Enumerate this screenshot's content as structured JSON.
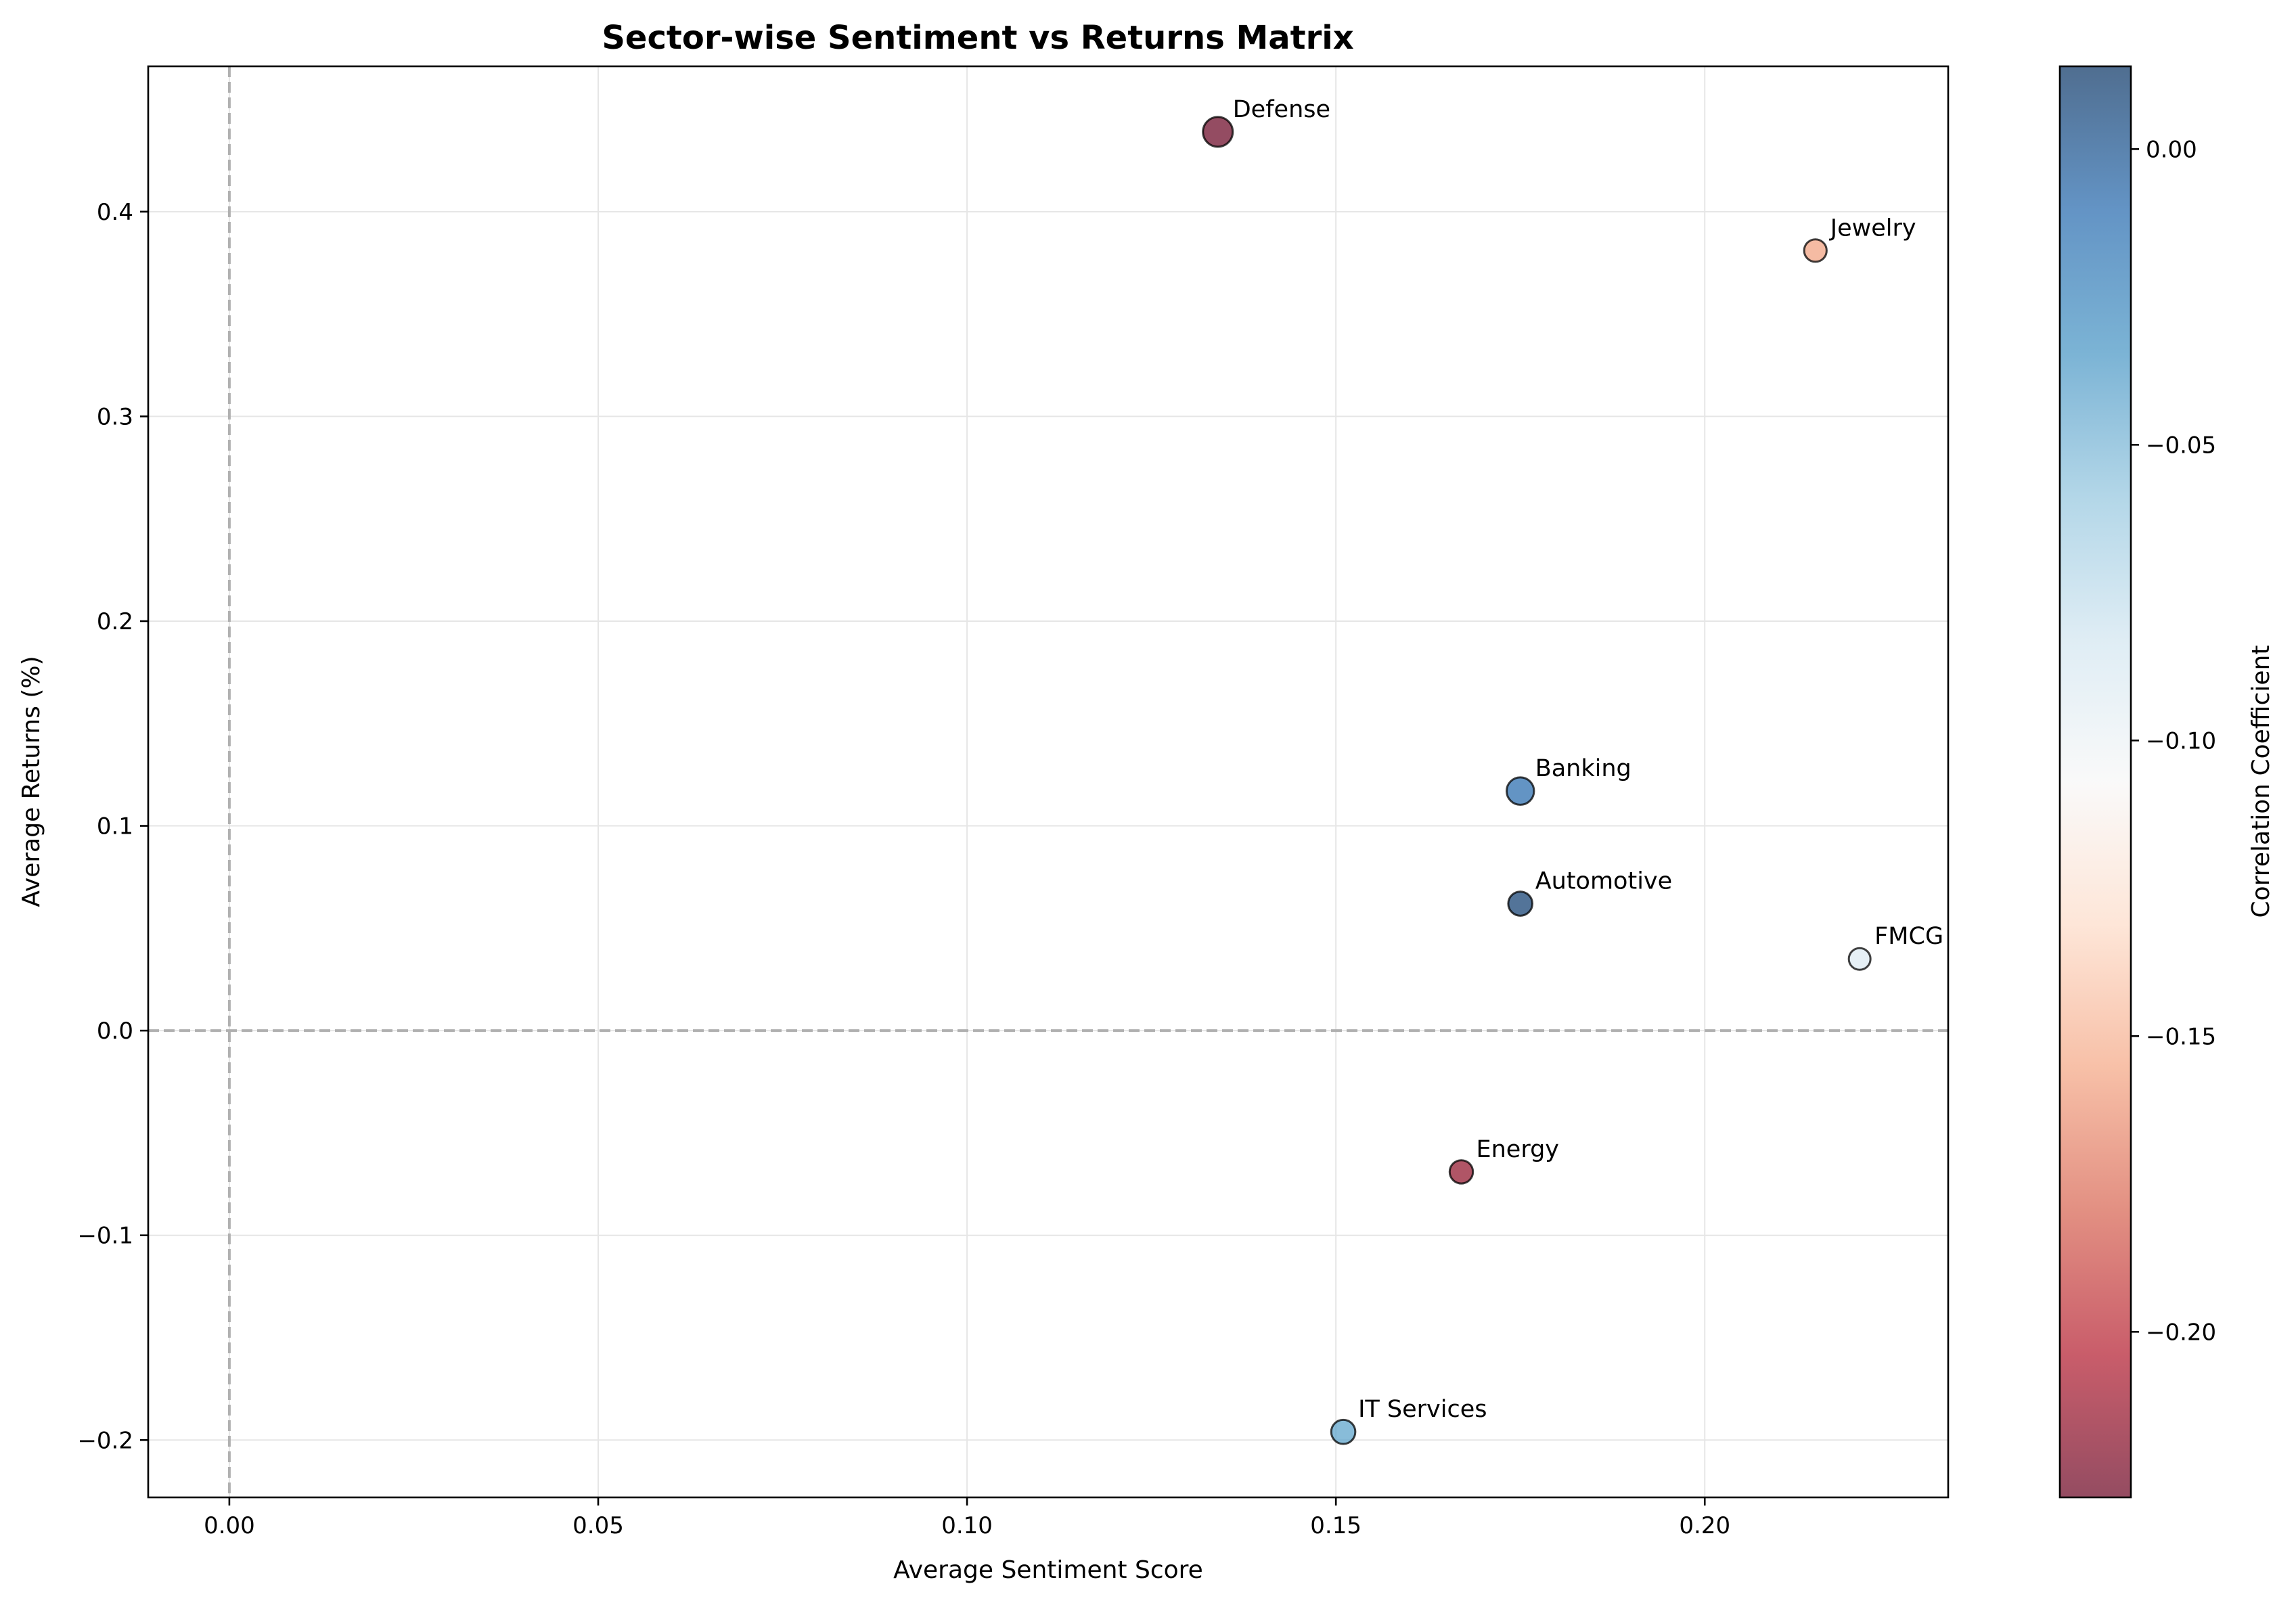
{
  "chart_data": {
    "type": "scatter",
    "title": "Sector-wise Sentiment vs Returns Matrix",
    "xlabel": "Average Sentiment Score",
    "ylabel": "Average Returns (%)",
    "xlim": [
      -0.011,
      0.233
    ],
    "ylim": [
      -0.228,
      0.471
    ],
    "xticks": [
      0.0,
      0.05,
      0.1,
      0.15,
      0.2
    ],
    "xtick_labels": [
      "0.00",
      "0.05",
      "0.10",
      "0.15",
      "0.20"
    ],
    "yticks": [
      -0.2,
      -0.1,
      0.0,
      0.1,
      0.2,
      0.3,
      0.4
    ],
    "ytick_labels": [
      "−0.2",
      "−0.1",
      "0.0",
      "0.1",
      "0.2",
      "0.3",
      "0.4"
    ],
    "grid": true,
    "reference_lines": {
      "x": 0,
      "y": 0,
      "style": "dashed",
      "color": "#b0b0b0"
    },
    "points": [
      {
        "label": "Defense",
        "x": 0.134,
        "y": 0.439,
        "corr": -0.228,
        "size": 1.0
      },
      {
        "label": "Jewelry",
        "x": 0.215,
        "y": 0.381,
        "corr": -0.158,
        "size": 0.55
      },
      {
        "label": "Banking",
        "x": 0.175,
        "y": 0.117,
        "corr": -0.01,
        "size": 0.85
      },
      {
        "label": "Automotive",
        "x": 0.175,
        "y": 0.062,
        "corr": 0.01,
        "size": 0.65
      },
      {
        "label": "FMCG",
        "x": 0.221,
        "y": 0.035,
        "corr": -0.09,
        "size": 0.5
      },
      {
        "label": "Energy",
        "x": 0.167,
        "y": -0.069,
        "corr": -0.215,
        "size": 0.6
      },
      {
        "label": "IT Services",
        "x": 0.151,
        "y": -0.196,
        "corr": -0.04,
        "size": 0.65
      }
    ],
    "colorbar": {
      "label": "Correlation Coefficient",
      "range": [
        -0.228,
        0.014
      ],
      "ticks": [
        0.0,
        -0.05,
        -0.1,
        -0.15,
        -0.2
      ],
      "tick_labels": [
        "0.00",
        "−0.05",
        "−0.10",
        "−0.15",
        "−0.20"
      ],
      "colormap": "RdBu",
      "colormap_stops": [
        "#67001f",
        "#b2182b",
        "#d6604d",
        "#f4a582",
        "#fddbc7",
        "#f7f7f7",
        "#d1e5f0",
        "#92c5de",
        "#4393c3",
        "#2166ac",
        "#053061"
      ],
      "alpha": 0.7
    }
  }
}
